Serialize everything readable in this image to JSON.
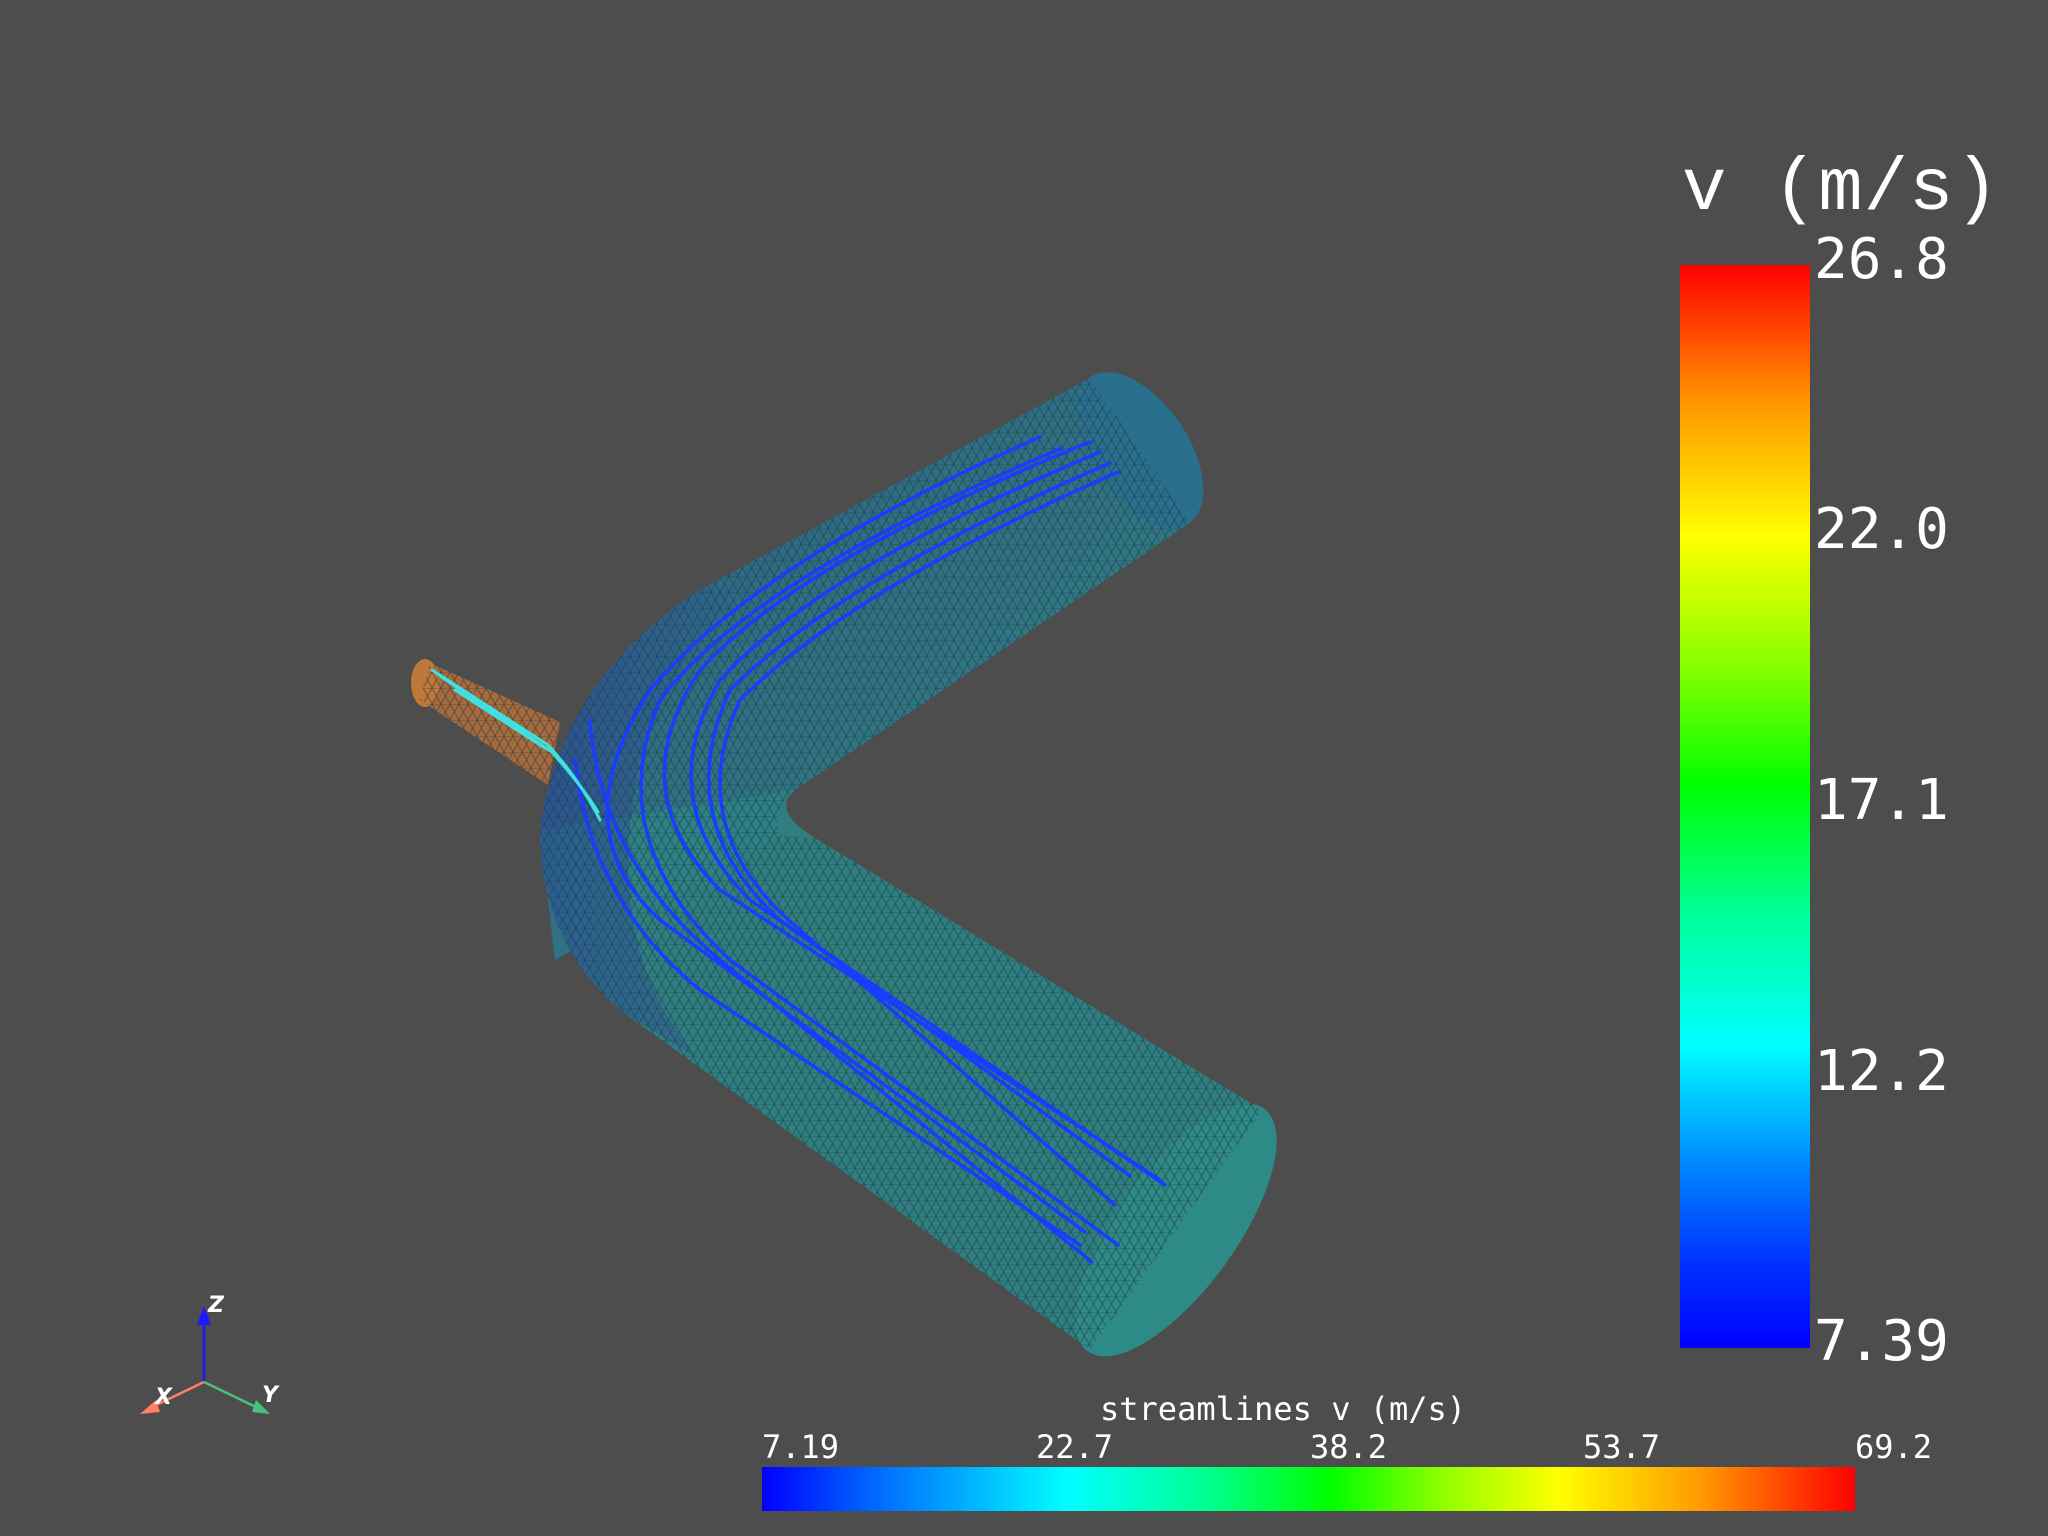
{
  "colorbar_vertical": {
    "title": "v (m/s)",
    "ticks": [
      "26.8",
      "22.0",
      "17.1",
      "12.2",
      "7.39"
    ],
    "colormap": [
      "#0000ff",
      "#00ffff",
      "#00ff00",
      "#ffff00",
      "#ff0000"
    ]
  },
  "colorbar_horizontal": {
    "title": "streamlines v (m/s)",
    "ticks": [
      "7.19",
      "22.7",
      "38.2",
      "53.7",
      "69.2"
    ]
  },
  "axes_widget": {
    "x_label": "X",
    "y_label": "Y",
    "z_label": "Z",
    "x_color": "#ff7f66",
    "y_color": "#4cc07f",
    "z_color": "#1a1aff"
  },
  "colors": {
    "background": "#4d4d4d",
    "pipe_main": "#2a7a8a",
    "pipe_inlet": "#b8703a",
    "streamline_main": "#1a3cff",
    "streamline_inlet": "#40e0e0"
  }
}
